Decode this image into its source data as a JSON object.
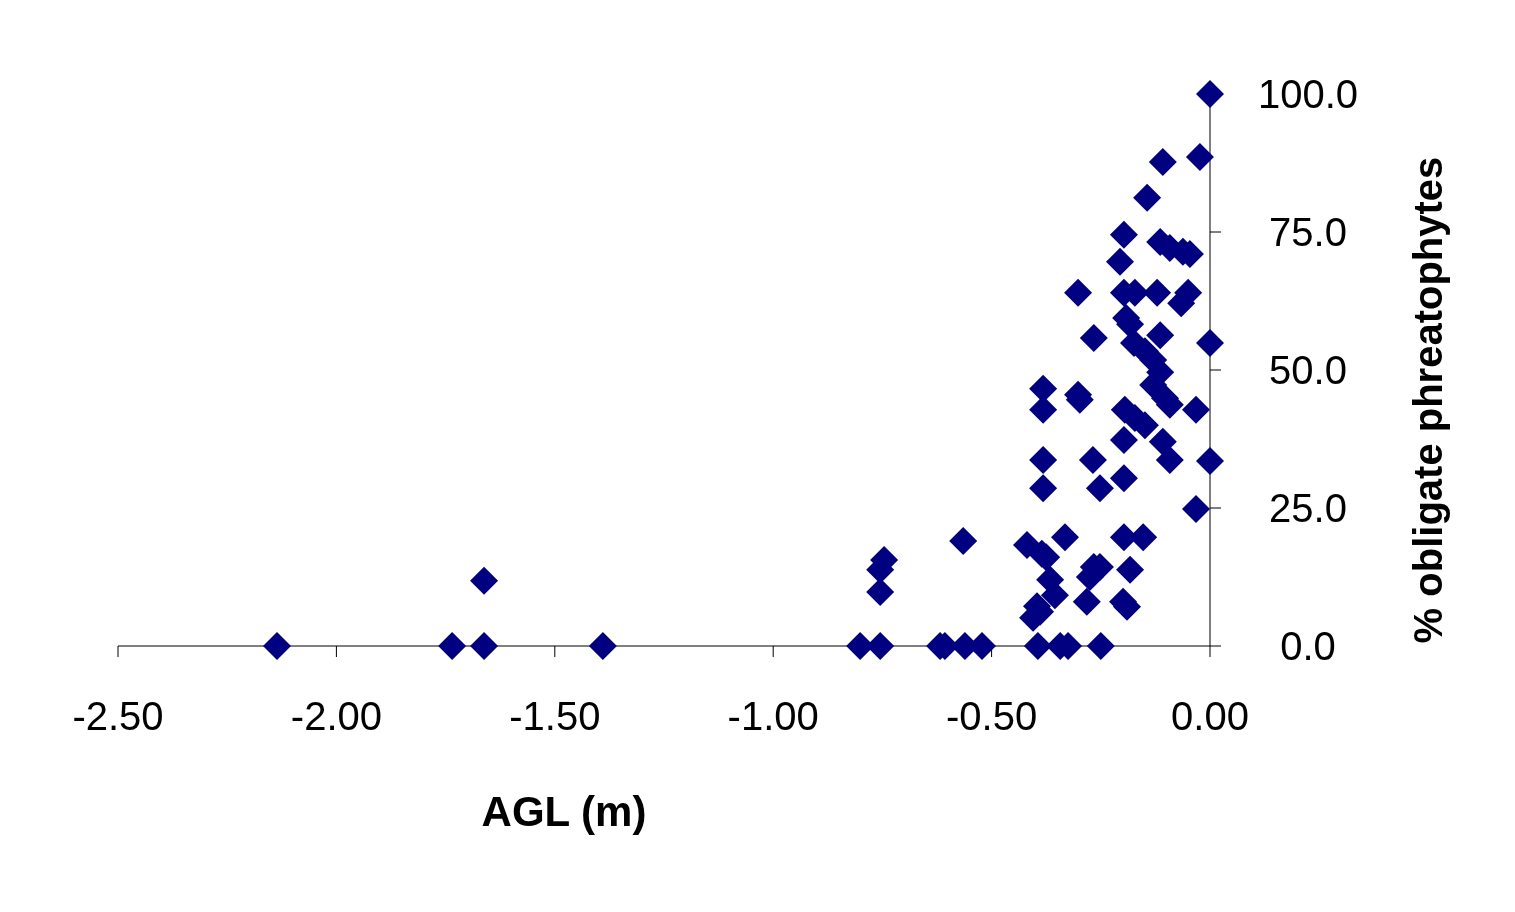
{
  "chart_data": {
    "type": "scatter",
    "xlabel": "AGL (m)",
    "ylabel": "% obligate phreatophytes",
    "marker": "diamond",
    "xlim": [
      -2.5,
      0
    ],
    "xticks": [
      {
        "value": -2.5,
        "label": "-2.50"
      },
      {
        "value": -2,
        "label": "-2.00"
      },
      {
        "value": -1.5,
        "label": "-1.50"
      },
      {
        "value": -1,
        "label": "-1.00"
      },
      {
        "value": -0.5,
        "label": "-0.50"
      },
      {
        "value": 0,
        "label": "0.00"
      }
    ],
    "ylim": [
      0,
      100
    ],
    "yticks": [
      {
        "value": 0,
        "label": "0.0"
      },
      {
        "value": 25,
        "label": "25.0"
      },
      {
        "value": 50,
        "label": "50.0"
      },
      {
        "value": 75,
        "label": "75.0"
      },
      {
        "value": 100,
        "label": "100.0"
      }
    ],
    "series": [
      {
        "color": "#000080",
        "x": [
          0,
          -0.023,
          -0.108,
          -0.144,
          -0.197,
          -0.114,
          -0.092,
          -0.062,
          -0.046,
          -0.206,
          -0.302,
          -0.197,
          -0.172,
          -0.121,
          -0.05,
          -0.066,
          -0.192,
          -0.183,
          -0.266,
          -0.114,
          -0.174,
          -0.149,
          -0.13,
          0,
          -0.114,
          -0.382,
          -0.302,
          -0.298,
          -0.13,
          -0.103,
          -0.092,
          -0.382,
          -0.032,
          -0.195,
          -0.172,
          -0.149,
          -0.197,
          -0.108,
          -0.092,
          -0.382,
          -0.382,
          -0.268,
          0,
          -0.197,
          -0.252,
          -0.032,
          -0.332,
          -0.197,
          -0.153,
          -0.565,
          -0.419,
          -0.385,
          -0.375,
          -0.183,
          -0.266,
          -0.275,
          -0.252,
          -0.366,
          -0.355,
          -0.396,
          -0.389,
          -0.282,
          -0.199,
          -0.19,
          -0.405,
          -0.746,
          -0.755,
          -0.755,
          -1.662,
          -2.136,
          -1.735,
          -1.662,
          -1.39,
          -0.801,
          -0.755,
          -0.618,
          -0.607,
          -0.561,
          -0.522,
          -0.394,
          -0.343,
          -0.325,
          -0.25
        ],
        "values": [
          100,
          88.6,
          87.7,
          81.2,
          74.5,
          73.2,
          72.1,
          71.4,
          71.0,
          69.6,
          64.0,
          64.0,
          64.0,
          64.0,
          64.0,
          62.1,
          59.4,
          58.3,
          55.8,
          56.3,
          54.9,
          53.4,
          51.8,
          54.9,
          49.6,
          46.6,
          45.5,
          44.6,
          47.3,
          44.9,
          43.7,
          42.8,
          42.8,
          42.8,
          41.3,
          40.0,
          37.3,
          37.0,
          33.7,
          33.7,
          28.6,
          33.7,
          33.5,
          30.4,
          28.6,
          24.8,
          19.7,
          19.7,
          19.7,
          19.0,
          18.3,
          16.7,
          16.1,
          13.8,
          14.3,
          12.5,
          14.3,
          12.0,
          9.2,
          7.2,
          6.2,
          8.0,
          8.0,
          7.1,
          5.1,
          15.6,
          13.8,
          9.8,
          11.8,
          0,
          0,
          0,
          0,
          0,
          0,
          0,
          0,
          0,
          0,
          0,
          0,
          0,
          0
        ]
      }
    ]
  }
}
